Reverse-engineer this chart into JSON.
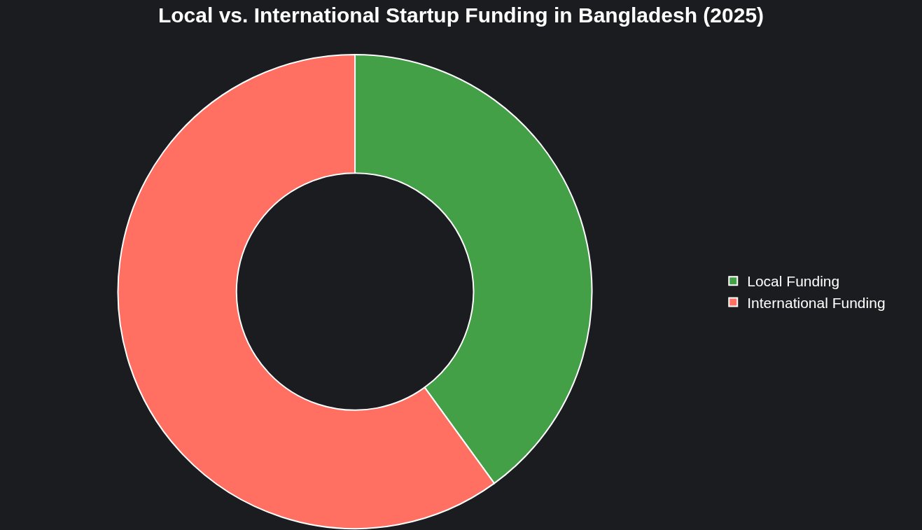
{
  "chart_data": {
    "type": "donut",
    "title": "Local vs. International Startup Funding in Bangladesh (2025)",
    "categories": [
      "Local Funding",
      "International Funding"
    ],
    "values": [
      40,
      60
    ],
    "colors": [
      "#43a047",
      "#ff7063"
    ],
    "legend": "right"
  }
}
